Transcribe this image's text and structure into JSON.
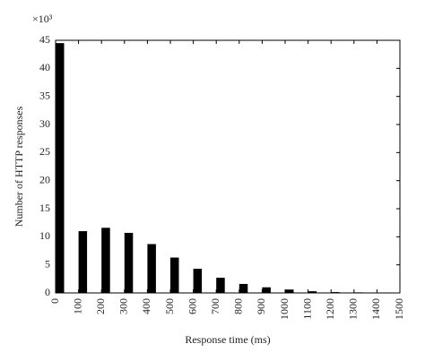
{
  "chart_data": {
    "type": "bar",
    "y_multiplier": "×10³",
    "xlabel": "Response time (ms)",
    "ylabel": "Number of  HTTP responses",
    "x": [
      0,
      100,
      200,
      300,
      400,
      500,
      600,
      700,
      800,
      900,
      1000,
      1100,
      1200,
      1300,
      1400
    ],
    "values": [
      44.5,
      11,
      11.6,
      10.7,
      8.7,
      6.3,
      4.3,
      2.7,
      1.6,
      1.0,
      0.6,
      0.3,
      0.15,
      0.1,
      0.05
    ],
    "color": "#000000",
    "xlim": [
      0,
      1500
    ],
    "xticks": [
      0,
      100,
      200,
      300,
      400,
      500,
      600,
      700,
      800,
      900,
      1000,
      1100,
      1200,
      1300,
      1400,
      1500
    ],
    "ylim": [
      0,
      45
    ],
    "yticks": [
      0,
      5,
      10,
      15,
      20,
      25,
      30,
      35,
      40,
      45
    ]
  }
}
